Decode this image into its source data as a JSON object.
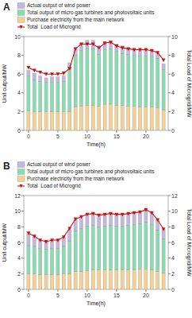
{
  "chart_data": [
    {
      "type": "bar",
      "title": "A",
      "stacked": true,
      "grid": false,
      "legend": "top-left",
      "x_label": "Time(h)",
      "y_label": "Unit output/MW",
      "y2_label": "Total Load of Microgrid/MW",
      "x": [
        0,
        1,
        2,
        3,
        4,
        5,
        6,
        7,
        8,
        9,
        10,
        11,
        12,
        13,
        14,
        15,
        16,
        17,
        18,
        19,
        20,
        21,
        22,
        23
      ],
      "xlim": [
        -0.8,
        23.8
      ],
      "xticks": [
        0,
        5,
        10,
        15,
        20
      ],
      "ylim": [
        0,
        10
      ],
      "yticks": [
        0,
        2,
        4,
        6,
        8,
        10
      ],
      "y2lim": [
        0,
        10
      ],
      "y2ticks": [
        0,
        2,
        4,
        6,
        8,
        10
      ],
      "series": [
        {
          "name": "Purchase electricity from the main network",
          "color": "#f5d090",
          "values": [
            2.1,
            2.0,
            2.0,
            2.0,
            2.0,
            2.0,
            2.0,
            2.0,
            2.5,
            2.6,
            2.7,
            2.7,
            2.6,
            2.8,
            2.8,
            2.7,
            2.7,
            2.6,
            2.6,
            2.5,
            2.5,
            2.5,
            2.4,
            2.2
          ]
        },
        {
          "name": "Total output of micro gas turbines and photovoltaic units",
          "color": "#88ddb0",
          "values": [
            3.7,
            3.4,
            3.2,
            3.1,
            3.1,
            3.1,
            3.2,
            4.5,
            5.5,
            5.9,
            6.0,
            6.0,
            5.5,
            5.8,
            5.9,
            5.7,
            5.5,
            5.5,
            5.4,
            5.4,
            5.4,
            5.4,
            5.3,
            4.3
          ]
        },
        {
          "name": "Actual output of wind power",
          "color": "#c0b8e0",
          "values": [
            0.6,
            0.7,
            0.6,
            0.5,
            0.6,
            0.6,
            0.6,
            0.7,
            0.8,
            0.8,
            0.9,
            0.9,
            0.9,
            0.8,
            0.8,
            0.8,
            0.8,
            0.7,
            0.7,
            0.7,
            0.7,
            0.7,
            0.6,
            0.6
          ]
        },
        {
          "name": "Total  Load of Microgrid",
          "type": "line",
          "axis": "y2",
          "color": "#cc1111",
          "marker": "triangle-down",
          "values": [
            6.7,
            6.4,
            6.2,
            6.0,
            6.0,
            6.0,
            6.1,
            6.6,
            8.7,
            9.2,
            9.2,
            9.2,
            8.8,
            9.3,
            9.4,
            9.0,
            8.8,
            8.7,
            8.6,
            8.6,
            8.6,
            8.5,
            8.3,
            7.5
          ]
        }
      ]
    },
    {
      "type": "bar",
      "title": "B",
      "stacked": true,
      "grid": false,
      "legend": "top-left",
      "x_label": "Time(h)",
      "y_label": "Unit output/MW",
      "y2_label": "Total Load of Microgrid/MW",
      "x": [
        0,
        1,
        2,
        3,
        4,
        5,
        6,
        7,
        8,
        9,
        10,
        11,
        12,
        13,
        14,
        15,
        16,
        17,
        18,
        19,
        20,
        21,
        22,
        23
      ],
      "xlim": [
        -0.8,
        23.8
      ],
      "xticks": [
        0,
        5,
        10,
        15,
        20
      ],
      "ylim": [
        0,
        12
      ],
      "yticks": [
        0,
        2,
        4,
        6,
        8,
        10,
        12
      ],
      "y2lim": [
        0,
        12
      ],
      "y2ticks": [
        0,
        2,
        4,
        6,
        8,
        10,
        12
      ],
      "series": [
        {
          "name": "Purchase electricity from the main network",
          "color": "#f5d090",
          "values": [
            2.0,
            2.0,
            1.9,
            1.9,
            1.9,
            1.9,
            2.0,
            2.0,
            2.3,
            2.3,
            2.4,
            2.5,
            2.5,
            2.5,
            2.5,
            2.5,
            2.5,
            2.5,
            2.5,
            2.6,
            2.6,
            2.5,
            2.3,
            2.1
          ]
        },
        {
          "name": "Total output of micro gas turbines and photovoltaic units",
          "color": "#88ddb0",
          "values": [
            3.6,
            3.5,
            3.3,
            3.2,
            3.3,
            3.3,
            3.5,
            4.2,
            5.2,
            5.5,
            5.7,
            5.7,
            5.5,
            5.6,
            5.7,
            5.6,
            5.6,
            5.7,
            5.8,
            5.8,
            6.0,
            5.8,
            5.3,
            4.4
          ]
        },
        {
          "name": "Actual output of wind power",
          "color": "#c0b8e0",
          "values": [
            1.5,
            1.3,
            1.1,
            1.0,
            1.1,
            1.1,
            1.2,
            1.4,
            1.4,
            1.4,
            1.5,
            1.5,
            1.5,
            1.5,
            1.5,
            1.5,
            1.5,
            1.5,
            1.5,
            1.5,
            1.6,
            1.5,
            1.3,
            1.2
          ]
        },
        {
          "name": "Total  Load of Microgrid",
          "type": "line",
          "axis": "y2",
          "color": "#cc1111",
          "marker": "triangle-down",
          "values": [
            7.2,
            6.8,
            6.3,
            6.1,
            6.3,
            6.3,
            6.7,
            7.8,
            9.0,
            9.3,
            9.6,
            9.7,
            9.5,
            9.6,
            9.7,
            9.6,
            9.6,
            9.7,
            9.8,
            9.9,
            10.2,
            9.8,
            8.9,
            7.7
          ]
        }
      ]
    }
  ]
}
